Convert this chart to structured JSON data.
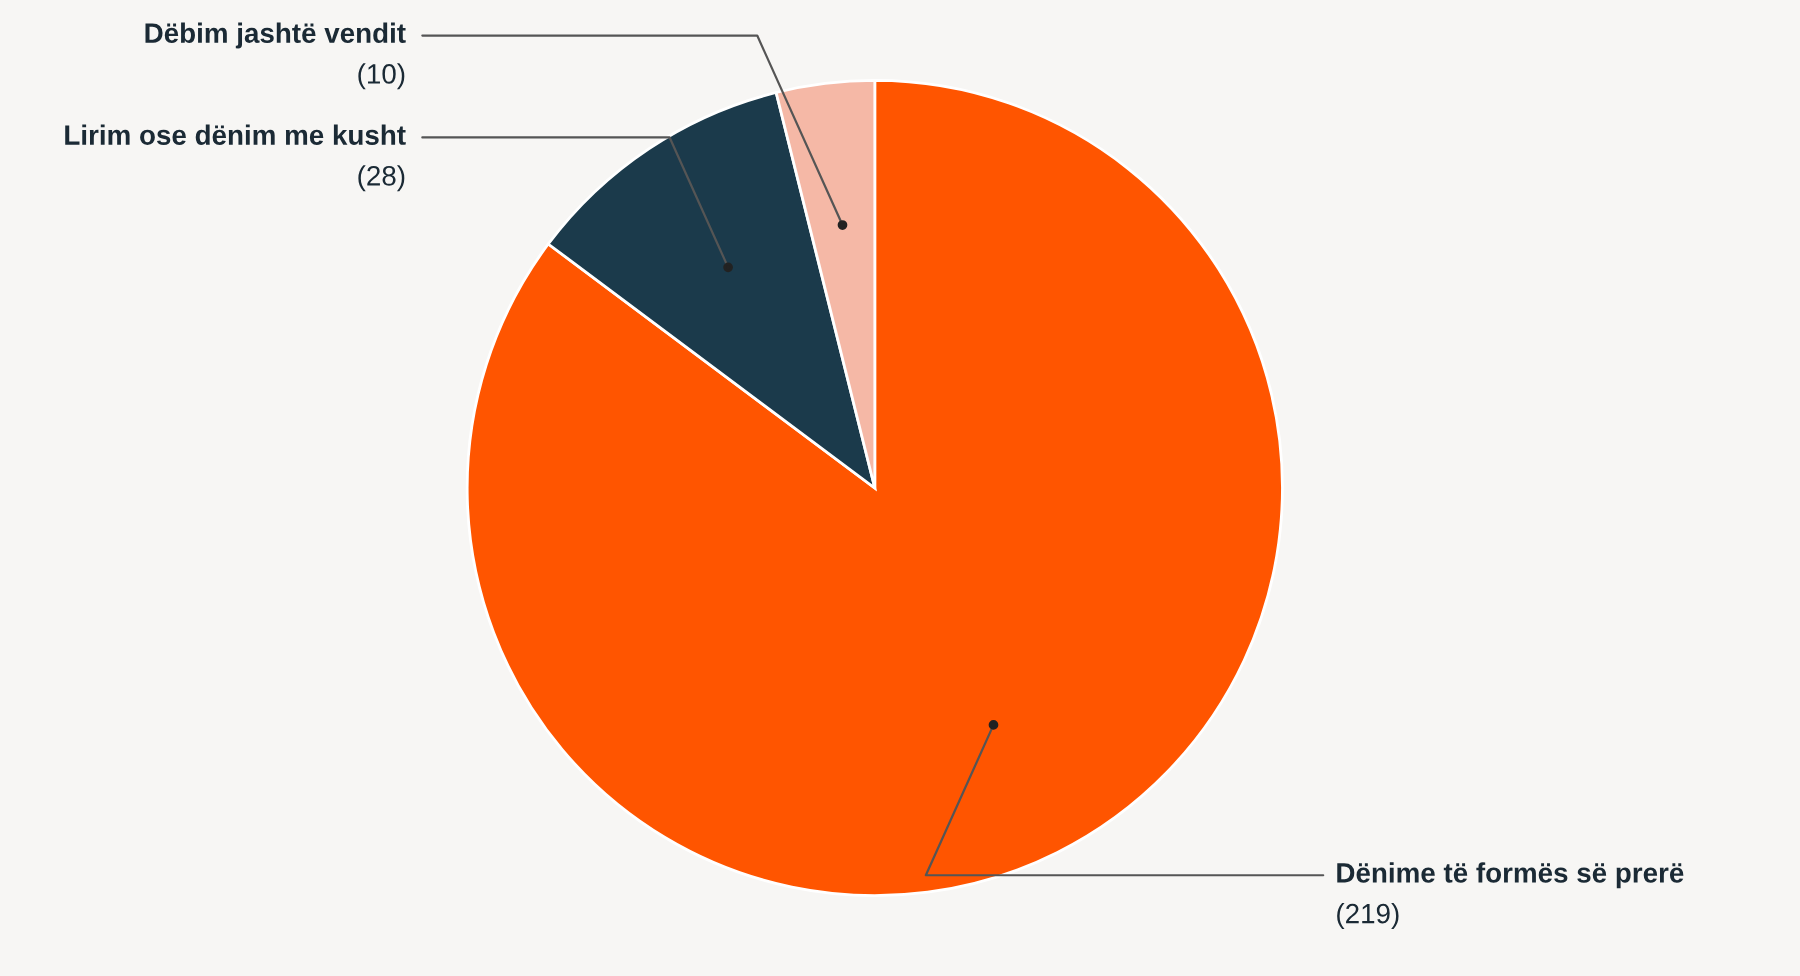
{
  "chart_data": {
    "type": "pie",
    "categories": [
      "Dënime të formës së prerë",
      "Lirim ose dënim me kusht",
      "Dëbim jashtë vendit"
    ],
    "values": [
      219,
      28,
      10
    ],
    "value_labels": [
      "(219)",
      "(28)",
      "(10)"
    ],
    "colors": [
      "#ff5500",
      "#1b3a4b",
      "#f5b8a6"
    ]
  }
}
